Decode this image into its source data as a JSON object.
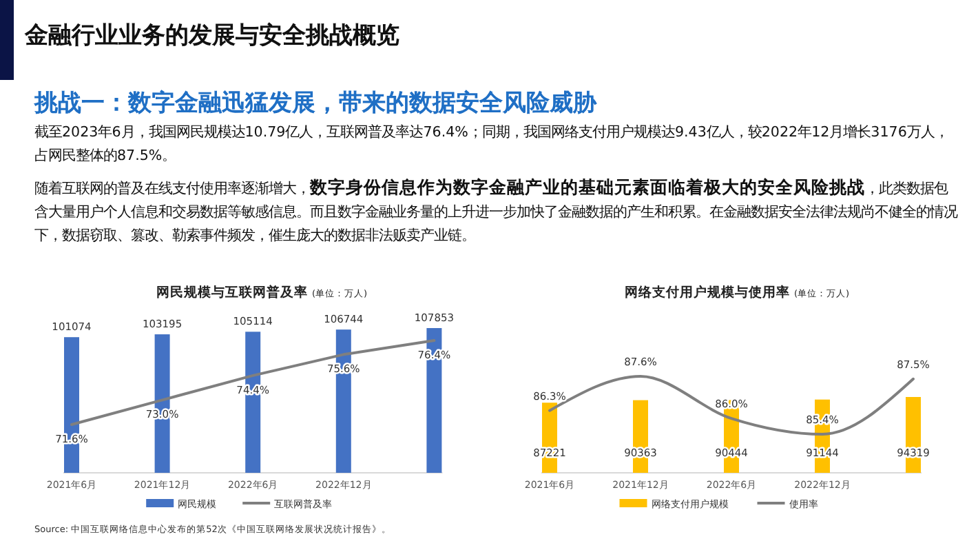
{
  "chart_data": [
    {
      "type": "other",
      "title": "金融行业业务的发展与安全挑战概览",
      "subtitle": "挑战一：数字金融迅猛发展，带来的数据安全风险威胁",
      "annotations": [
        "截至2023年6月，我国网民规模达10.79亿人，互联网普及率达76.4%；同期，我国网络支付用户规模达9.43亿人，较2022年12月增长3176万人，占网民整体的87.5%。",
        "随着互联网的普及在线支付使用率逐渐增大，",
        "数字身份信息作为数字金融产业的基础元素面临着极大的安全风险挑战",
        "，此类数据包含大量用户个人信息和交易数据等敏感信息。而且数字金融业务量的上升进一步加快了金融数据的产生和积累。在金融数据安全法律法规尚不健全的情况下，数据窃取、篡改、勒索事件频发，催生庞大的数据非法贩卖产业链。"
      ]
    },
    {
      "type": "bar",
      "title": "网民规模与互联网普及率",
      "subtitle": "(单位：万人)",
      "categories": [
        "2021年6月",
        "2021年12月",
        "2022年6月",
        "2022年12月",
        null
      ],
      "legend": "bottom",
      "annotations": [
        "Source:  中国互联网络信息中心发布的第52次《中国互联网络发展状况统计报告》。"
      ],
      "series": [
        {
          "name": "网民规模",
          "color": "#4472c4",
          "values": [
            101074,
            103195,
            105114,
            106744,
            107853
          ],
          "value_labels": [
            "101074",
            "103195",
            "105114",
            "106744",
            "107853"
          ]
        },
        {
          "name": "互联网普及率",
          "type": "line",
          "axis": "y2",
          "color": "#7f7f7f",
          "values": [
            71.6,
            73.0,
            74.4,
            75.6,
            76.4
          ],
          "value_labels": [
            "71.6%",
            "73.0%",
            "74.4%",
            "75.6%",
            "76.4%"
          ]
        }
      ]
    },
    {
      "type": "bar",
      "title": "网络支付用户规模与使用率",
      "subtitle": "(单位：万人)",
      "categories": [
        "2021年6月",
        "2021年12月",
        "2022年6月",
        "2022年12月",
        null
      ],
      "legend": "bottom",
      "series": [
        {
          "name": "网络支付用户规模",
          "color": "#ffc000",
          "values": [
            87221,
            90363,
            90444,
            91144,
            94319
          ],
          "value_labels": [
            "87221",
            "90363",
            "90444",
            "91144",
            "94319"
          ]
        },
        {
          "name": "使用率",
          "type": "line",
          "axis": "y2",
          "color": "#7f7f7f",
          "values": [
            86.3,
            87.6,
            86.0,
            85.4,
            87.5
          ],
          "value_labels": [
            "86.3%",
            "87.6%",
            "86.0%",
            "85.4%",
            "87.5%"
          ]
        }
      ]
    }
  ]
}
